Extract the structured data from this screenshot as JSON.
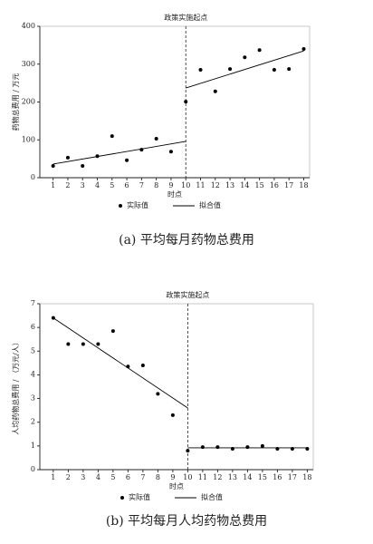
{
  "chart_data": [
    {
      "type": "scatter",
      "caption": "(a) 平均每月药物总费用",
      "xlabel": "时点",
      "ylabel": "药物总费用 / 万元",
      "annotation": {
        "text": "政策实施起点",
        "x": 10
      },
      "x": [
        1,
        2,
        3,
        4,
        5,
        6,
        7,
        8,
        9,
        10,
        11,
        12,
        13,
        14,
        15,
        16,
        17,
        18
      ],
      "series": [
        {
          "name": "实际值",
          "color": "#000000",
          "style": "dot",
          "values": [
            31,
            53,
            31,
            57,
            110,
            46,
            74,
            103,
            69,
            201,
            285,
            228,
            287,
            318,
            337,
            285,
            287,
            340
          ]
        },
        {
          "name": "拟合值",
          "color": "#000000",
          "style": "line",
          "segments": [
            {
              "x": [
                1,
                10
              ],
              "values": [
                36,
                96
              ]
            },
            {
              "x": [
                10,
                18
              ],
              "values": [
                237,
                335
              ]
            }
          ]
        }
      ],
      "xlim": [
        0.1,
        18.4
      ],
      "xticks": [
        1,
        2,
        3,
        4,
        5,
        6,
        7,
        8,
        9,
        10,
        11,
        12,
        13,
        14,
        15,
        16,
        17,
        18
      ],
      "ylim": [
        0,
        400
      ],
      "yticks": [
        0,
        100,
        200,
        300,
        400
      ]
    },
    {
      "type": "scatter",
      "caption": "(b) 平均每月人均药物总费用",
      "xlabel": "时点",
      "ylabel": "人均药物总费用 / （万元/人）",
      "annotation": {
        "text": "政策实施起点",
        "x": 10
      },
      "x": [
        1,
        2,
        3,
        4,
        5,
        6,
        7,
        8,
        9,
        10,
        11,
        12,
        13,
        14,
        15,
        16,
        17,
        18
      ],
      "series": [
        {
          "name": "实际值",
          "color": "#000000",
          "style": "dot",
          "values": [
            6.4,
            5.3,
            5.3,
            5.3,
            5.85,
            4.35,
            4.4,
            3.2,
            2.3,
            0.8,
            0.95,
            0.95,
            0.88,
            0.95,
            1.0,
            0.88,
            0.88,
            0.88
          ]
        },
        {
          "name": "拟合值",
          "color": "#000000",
          "style": "line",
          "segments": [
            {
              "x": [
                1,
                10
              ],
              "values": [
                6.4,
                2.6
              ]
            },
            {
              "x": [
                10,
                18
              ],
              "values": [
                0.92,
                0.92
              ]
            }
          ]
        }
      ],
      "xlim": [
        0.1,
        18.4
      ],
      "xticks": [
        1,
        2,
        3,
        4,
        5,
        6,
        7,
        8,
        9,
        10,
        11,
        12,
        13,
        14,
        15,
        16,
        17,
        18
      ],
      "ylim": [
        0,
        7
      ],
      "yticks": [
        0,
        1,
        2,
        3,
        4,
        5,
        6,
        7
      ]
    }
  ]
}
